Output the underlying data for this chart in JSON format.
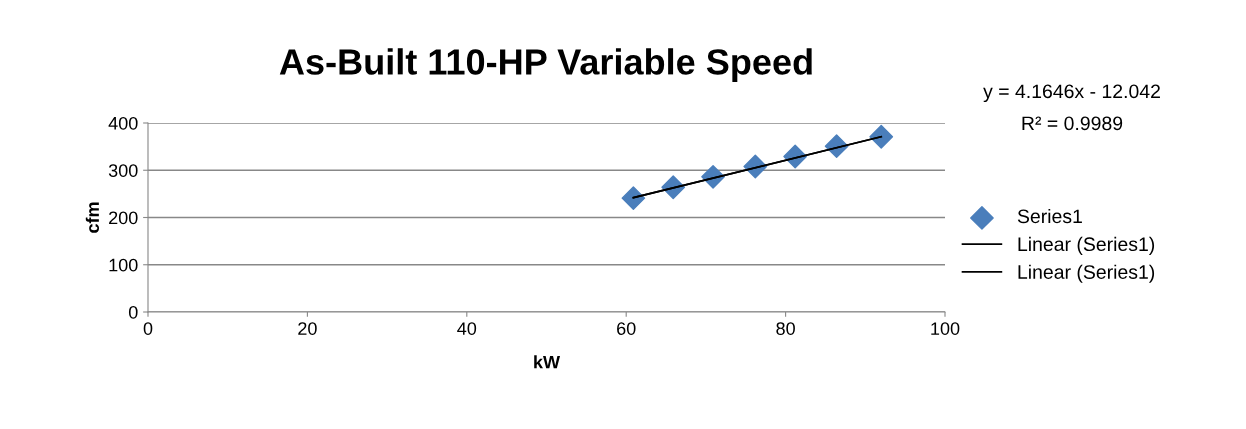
{
  "chart_data": {
    "type": "scatter",
    "title": "As-Built 110-HP Variable Speed",
    "xlabel": "kW",
    "ylabel": "cfm",
    "xlim": [
      0,
      100
    ],
    "xticks": [
      0,
      20,
      40,
      60,
      80,
      100
    ],
    "ylim": [
      0,
      400
    ],
    "yticks": [
      0,
      100,
      200,
      300,
      400
    ],
    "grid": "y",
    "legend": "right",
    "annotations": [
      "y = 4.1646x - 12.042",
      "R² = 0.9989"
    ],
    "series": [
      {
        "name": "Series1",
        "marker": "diamond",
        "color": "#4a7ebb",
        "x": [
          60.9,
          65.9,
          70.9,
          76.2,
          81.2,
          86.4,
          92.0
        ],
        "values": [
          241,
          264,
          286,
          308,
          329,
          351,
          371
        ]
      },
      {
        "name": "Linear (Series1)",
        "type": "line",
        "color": "#000000",
        "x": [
          60.9,
          92.0
        ],
        "values": [
          242,
          371
        ]
      },
      {
        "name": "Linear (Series1)",
        "type": "line",
        "color": "#000000",
        "x": [
          60.9,
          92.0
        ],
        "values": [
          242,
          371
        ]
      }
    ]
  }
}
